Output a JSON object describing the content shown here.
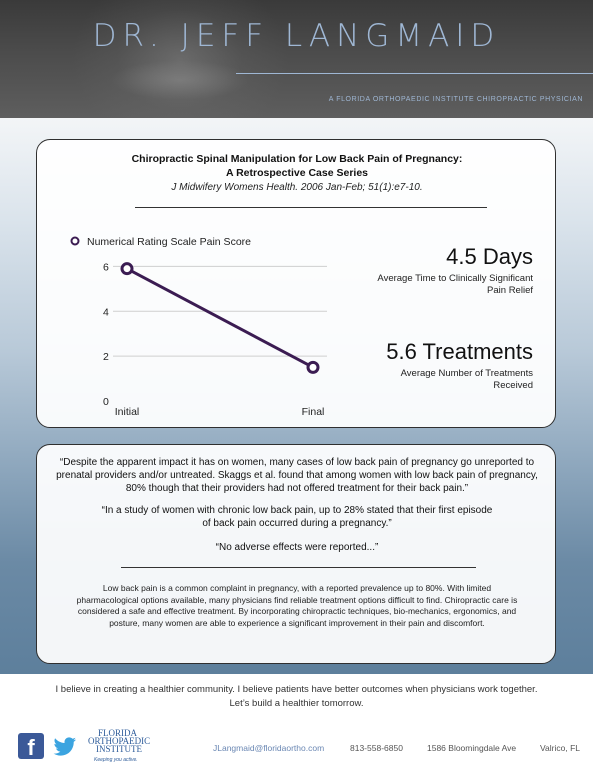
{
  "header": {
    "name": "DR. JEFF LANGMAID",
    "tagline": "A FLORIDA ORTHOPAEDIC INSTITUTE CHIROPRACTIC PHYSICIAN"
  },
  "study": {
    "title_line1": "Chiropractic Spinal Manipulation for Low Back Pain of Pregnancy:",
    "title_line2": "A Retrospective Case Series",
    "citation": "J Midwifery Womens Health. 2006 Jan-Feb; 51(1):e7-10."
  },
  "chart_data": {
    "type": "line",
    "categories": [
      "Initial",
      "Final"
    ],
    "series": [
      {
        "name": "Numerical Rating Scale Pain Score",
        "values": [
          5.9,
          1.5
        ],
        "color": "#3b1c52"
      }
    ],
    "yticks": [
      0,
      2,
      4,
      6
    ],
    "ylim": [
      0,
      7
    ],
    "grid": true,
    "legend": "top-left"
  },
  "stats": [
    {
      "value": "4.5 Days",
      "label": "Average Time to Clinically Significant Pain Relief"
    },
    {
      "value": "5.6 Treatments",
      "label": "Average Number of Treatments Received"
    }
  ],
  "quotes": [
    "“Despite the apparent impact it has on women, many cases of low back pain of pregnancy go unreported to prenatal providers and/or untreated. Skaggs et al. found that among women with low back pain of pregnancy, 80% though that their providers had not offered treatment for their back pain.”",
    "“In a study of women with chronic low back pain, up to 28% stated that their first episode of back pain occurred during a pregnancy.”",
    "“No adverse effects were reported...”"
  ],
  "summary": "Low back pain is a common complaint in pregnancy, with a reported prevalence up to 80%. With limited pharmacological options available, many physicians find reliable treatment options difficult to find. Chiropractic care is considered a safe and effective treatment. By incorporating chiropractic techniques, bio-mechanics, ergonomics, and posture, many women are able to experience a significant improvement in their pain and discomfort.",
  "footer": {
    "belief_line1": "I believe in creating a healthier community. I believe patients have better outcomes when physicians work together.",
    "belief_line2": "Let’s build a healthier tomorrow.",
    "logo_line1": "FLORIDA",
    "logo_line2": "ORTHOPAEDIC",
    "logo_line3": "INSTITUTE",
    "logo_tagline": "Keeping you active.",
    "facebook_letter": "f",
    "email": "JLangmaid@floridaortho.com",
    "phone": "813-558-6850",
    "address": "1586 Bloomingdale Ave",
    "city": "Valrico, FL"
  }
}
